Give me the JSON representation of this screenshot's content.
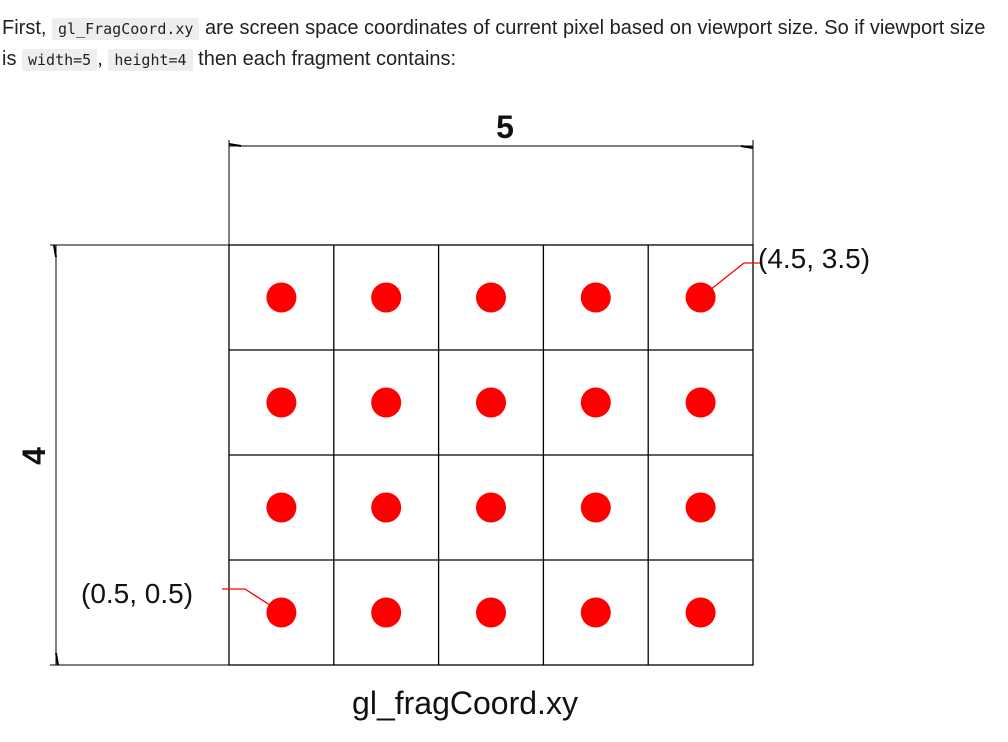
{
  "intro": {
    "part1": "First, ",
    "code1": "gl_FragCoord.xy",
    "part2": " are screen space coordinates of current pixel based on viewport size. So if viewport size is ",
    "code2": "width=5",
    "part3": ", ",
    "code3": "height=4",
    "part4": " then each fragment contains:"
  },
  "diagram": {
    "width_label": "5",
    "height_label": "4",
    "columns": 5,
    "rows": 4,
    "bottom_left_label": "(0.5, 0.5)",
    "top_right_label": "(4.5, 3.5)",
    "caption": "gl_fragCoord.xy",
    "dot_color": "#ff0000",
    "leader_color": "#ff0000",
    "line_color": "#000000"
  }
}
